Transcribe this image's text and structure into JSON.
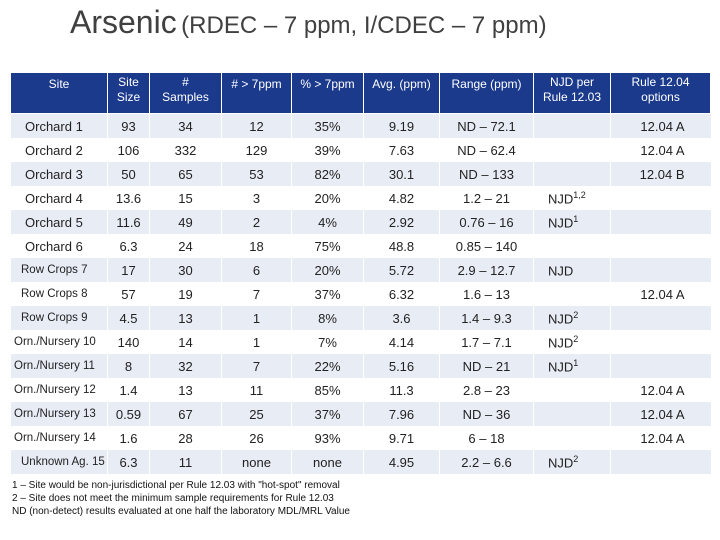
{
  "title": {
    "main": "Arsenic",
    "sub": "(RDEC – 7 ppm, I/CDEC – 7 ppm)"
  },
  "table": {
    "headers": [
      [
        "Site"
      ],
      [
        "Site",
        "Size"
      ],
      [
        "#",
        "Samples"
      ],
      [
        "# > 7ppm"
      ],
      [
        "% > 7ppm"
      ],
      [
        "Avg. (ppm)"
      ],
      [
        "Range (ppm)"
      ],
      [
        "NJD per",
        "Rule 12.03"
      ],
      [
        "Rule 12.04",
        "options"
      ]
    ],
    "rows": [
      {
        "site": "Orchard 1",
        "size": "93",
        "samples": "34",
        "over": "12",
        "pct": "35%",
        "avg": "9.19",
        "range": "ND – 72.1",
        "njd": "",
        "njd_sup": "",
        "option": "12.04 A"
      },
      {
        "site": "Orchard 2",
        "size": "106",
        "samples": "332",
        "over": "129",
        "pct": "39%",
        "avg": "7.63",
        "range": "ND – 62.4",
        "njd": "",
        "njd_sup": "",
        "option": "12.04 A"
      },
      {
        "site": "Orchard 3",
        "size": "50",
        "samples": "65",
        "over": "53",
        "pct": "82%",
        "avg": "30.1",
        "range": "ND – 133",
        "njd": "",
        "njd_sup": "",
        "option": "12.04 B"
      },
      {
        "site": "Orchard 4",
        "size": "13.6",
        "samples": "15",
        "over": "3",
        "pct": "20%",
        "avg": "4.82",
        "range": "1.2 – 21",
        "njd": "NJD",
        "njd_sup": "1,2",
        "option": ""
      },
      {
        "site": "Orchard 5",
        "size": "11.6",
        "samples": "49",
        "over": "2",
        "pct": "4%",
        "avg": "2.92",
        "range": "0.76 – 16",
        "njd": "NJD",
        "njd_sup": "1",
        "option": ""
      },
      {
        "site": "Orchard 6",
        "size": "6.3",
        "samples": "24",
        "over": "18",
        "pct": "75%",
        "avg": "48.8",
        "range": "0.85 – 140",
        "njd": "",
        "njd_sup": "",
        "option": ""
      },
      {
        "site": "Row Crops 7",
        "size": "17",
        "samples": "30",
        "over": "6",
        "pct": "20%",
        "avg": "5.72",
        "range": "2.9 – 12.7",
        "njd": "NJD",
        "njd_sup": "",
        "option": ""
      },
      {
        "site": "Row Crops 8",
        "size": "57",
        "samples": "19",
        "over": "7",
        "pct": "37%",
        "avg": "6.32",
        "range": "1.6 – 13",
        "njd": "",
        "njd_sup": "",
        "option": "12.04 A"
      },
      {
        "site": "Row Crops 9",
        "size": "4.5",
        "samples": "13",
        "over": "1",
        "pct": "8%",
        "avg": "3.6",
        "range": "1.4 – 9.3",
        "njd": "NJD",
        "njd_sup": "2",
        "option": ""
      },
      {
        "site": "Orn./Nursery 10",
        "size": "140",
        "samples": "14",
        "over": "1",
        "pct": "7%",
        "avg": "4.14",
        "range": "1.7 – 7.1",
        "njd": "NJD",
        "njd_sup": "2",
        "option": ""
      },
      {
        "site": "Orn./Nursery 11",
        "size": "8",
        "samples": "32",
        "over": "7",
        "pct": "22%",
        "avg": "5.16",
        "range": "ND – 21",
        "njd": "NJD",
        "njd_sup": "1",
        "option": ""
      },
      {
        "site": "Orn./Nursery 12",
        "size": "1.4",
        "samples": "13",
        "over": "11",
        "pct": "85%",
        "avg": "11.3",
        "range": "2.8 – 23",
        "njd": "",
        "njd_sup": "",
        "option": "12.04 A"
      },
      {
        "site": "Orn./Nursery 13",
        "size": "0.59",
        "samples": "67",
        "over": "25",
        "pct": "37%",
        "avg": "7.96",
        "range": "ND – 36",
        "njd": "",
        "njd_sup": "",
        "option": "12.04 A"
      },
      {
        "site": "Orn./Nursery 14",
        "size": "1.6",
        "samples": "28",
        "over": "26",
        "pct": "93%",
        "avg": "9.71",
        "range": "6 – 18",
        "njd": "",
        "njd_sup": "",
        "option": "12.04 A"
      },
      {
        "site": "Unknown Ag. 15",
        "size": "6.3",
        "samples": "11",
        "over": "none",
        "pct": "none",
        "avg": "4.95",
        "range": "2.2 – 6.6",
        "njd": "NJD",
        "njd_sup": "2",
        "option": ""
      }
    ]
  },
  "footnotes": [
    "1 – Site would be non-jurisdictional per Rule 12.03 with \"hot-spot\" removal",
    "2 – Site does not meet the minimum sample requirements for Rule 12.03",
    "ND (non-detect) results evaluated at one half the laboratory MDL/MRL Value"
  ]
}
